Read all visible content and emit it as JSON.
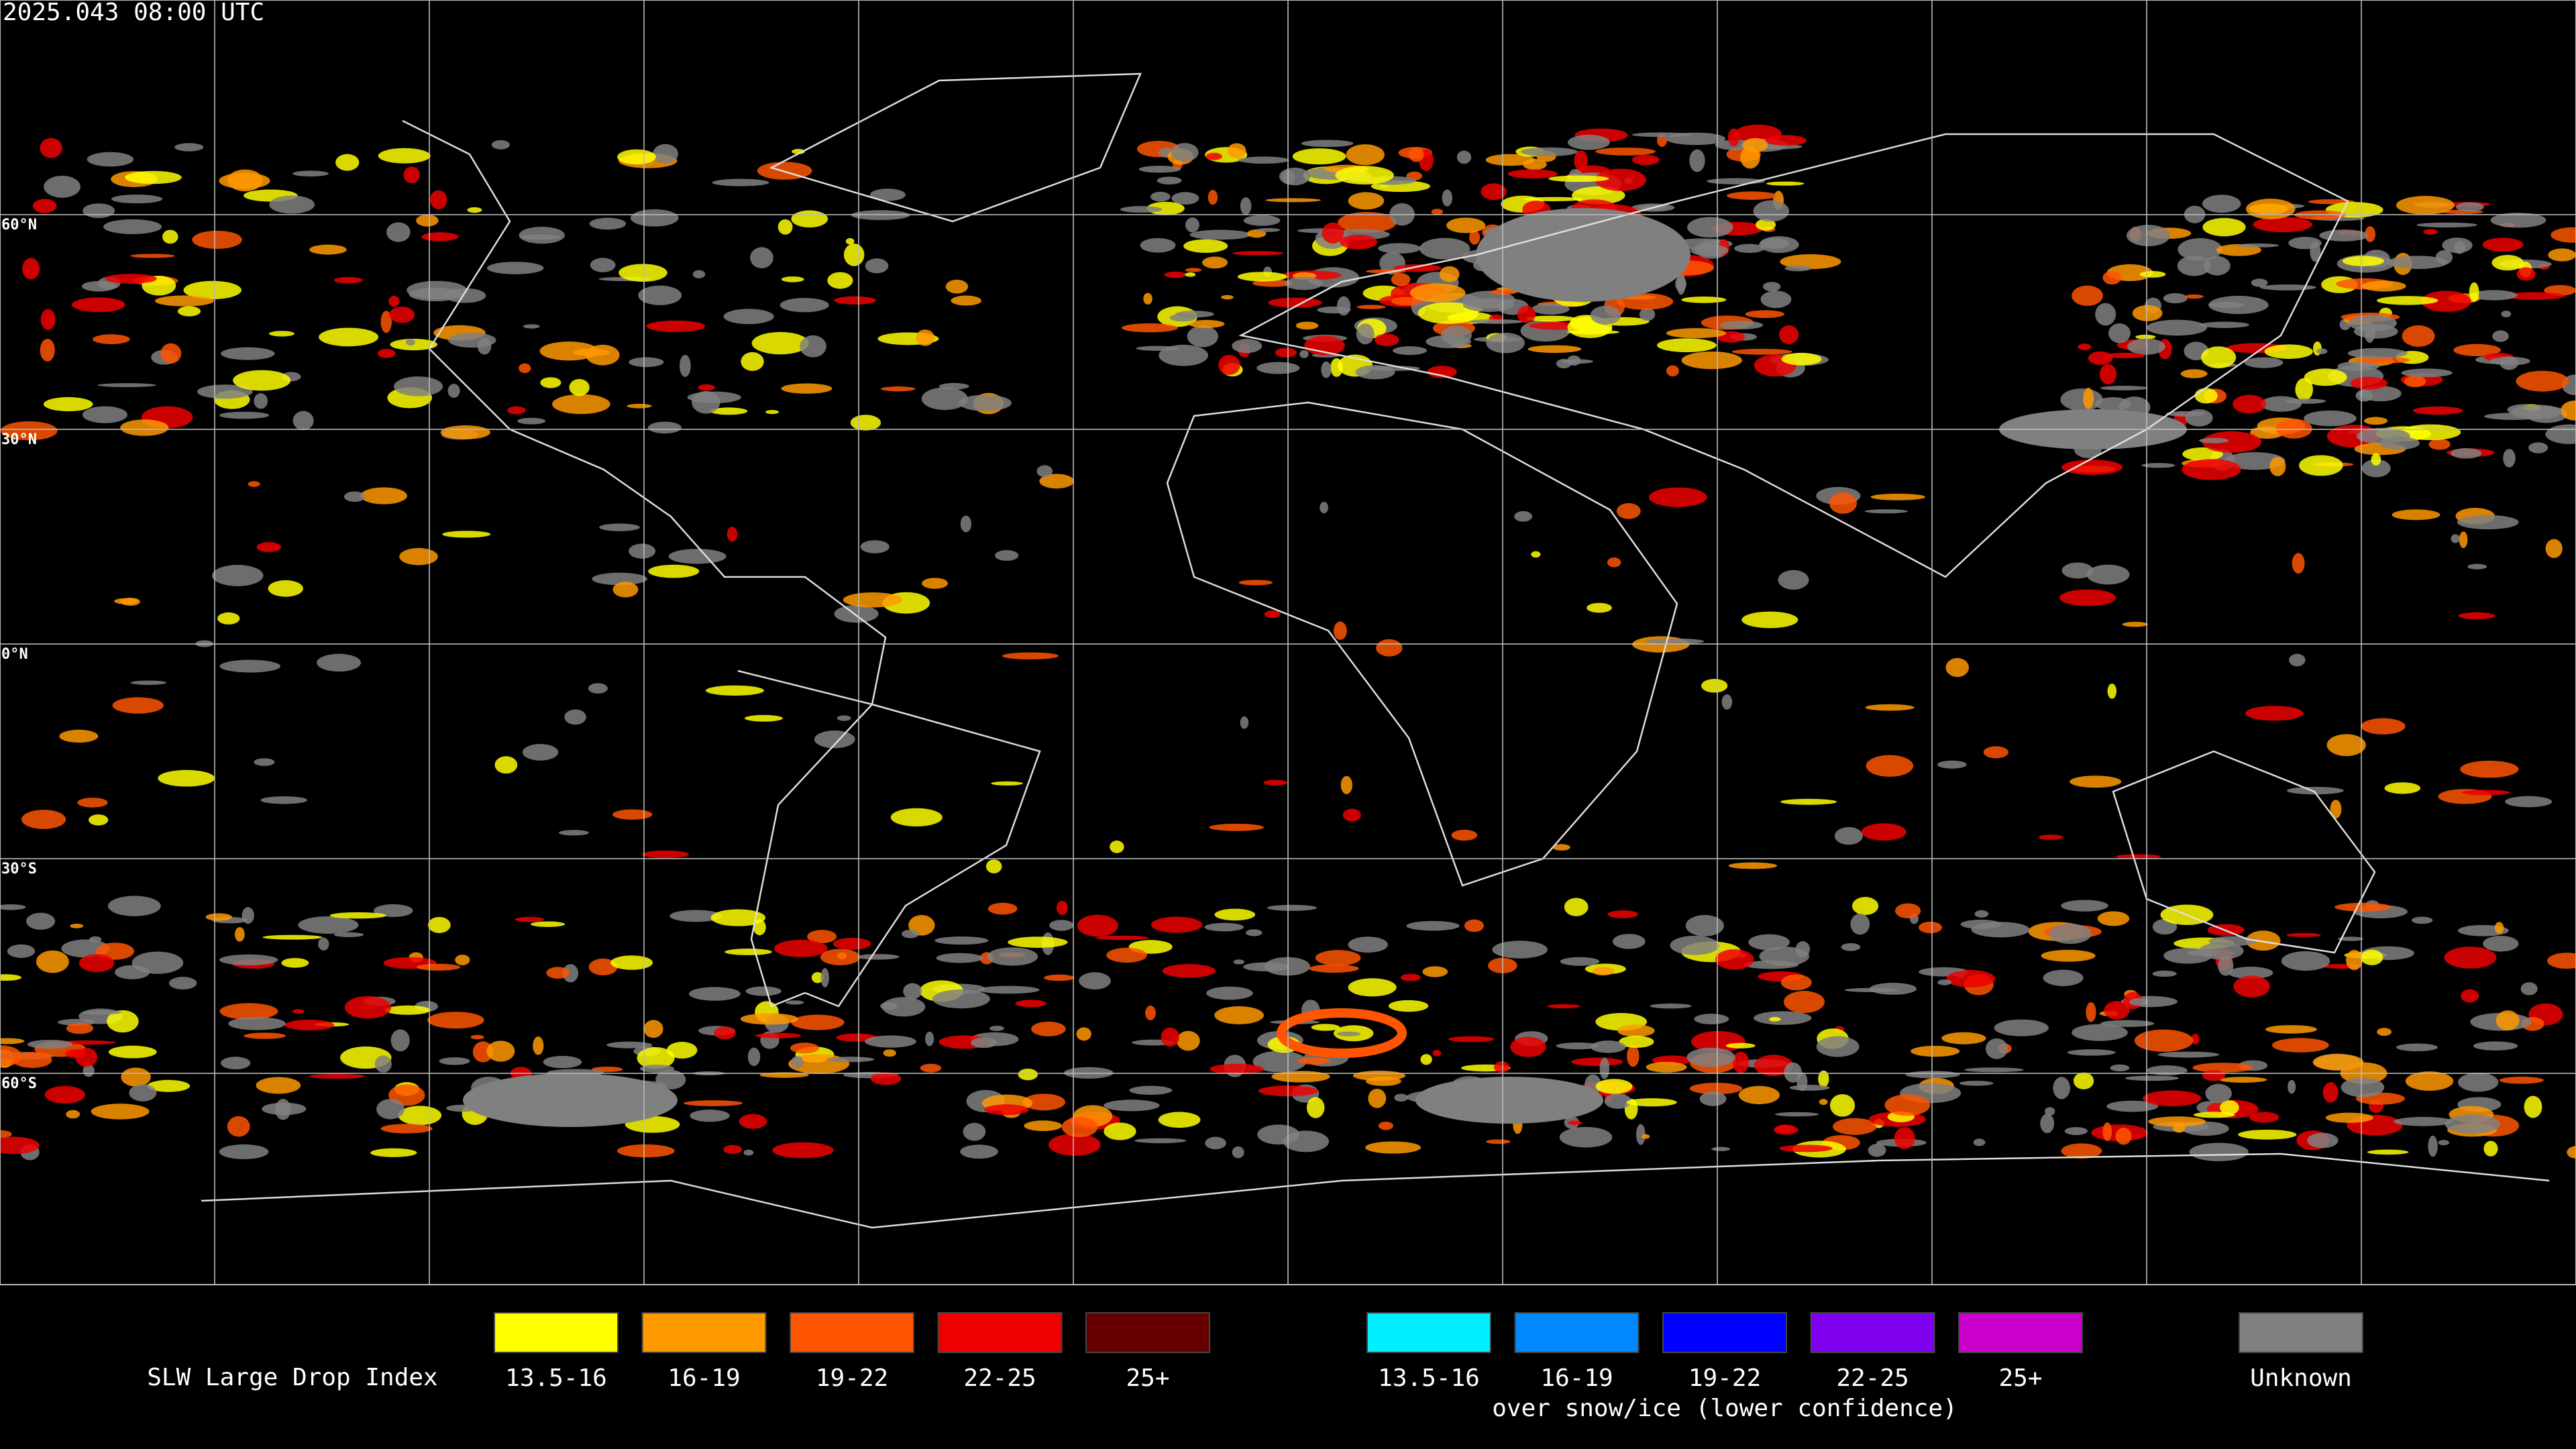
{
  "header": {
    "timestamp": "2025.043 08:00 UTC"
  },
  "map": {
    "latitude_labels": [
      "60°N",
      "30°N",
      "0°N",
      "30°S",
      "60°S"
    ]
  },
  "legend": {
    "title": "SLW Large Drop Index",
    "groups": [
      {
        "items": [
          {
            "label": "13.5-16",
            "color": "#ffff00"
          },
          {
            "label": "16-19",
            "color": "#ff9900"
          },
          {
            "label": "19-22",
            "color": "#ff5500"
          },
          {
            "label": "22-25",
            "color": "#ee0000"
          },
          {
            "label": "25+",
            "color": "#660000"
          }
        ]
      },
      {
        "items": [
          {
            "label": "13.5-16",
            "color": "#00eeff"
          },
          {
            "label": "16-19",
            "color": "#0088ff"
          },
          {
            "label": "19-22",
            "color": "#0000ff"
          },
          {
            "label": "22-25",
            "color": "#7f00ee"
          },
          {
            "label": "25+",
            "color": "#cc00cc"
          }
        ],
        "caption": "over snow/ice (lower confidence)"
      }
    ],
    "unknown": {
      "label": "Unknown",
      "color": "#808080"
    }
  }
}
